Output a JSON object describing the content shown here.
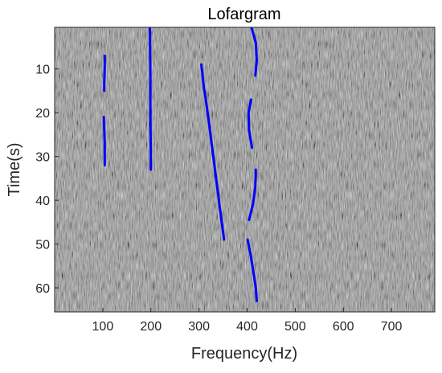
{
  "chart_data": {
    "type": "line",
    "title": "Lofargram",
    "xlabel": "Frequency(Hz)",
    "ylabel": "Time(s)",
    "xlim": [
      0,
      790
    ],
    "ylim": [
      0.5,
      65.5
    ],
    "y_reversed": true,
    "x_ticks": [
      100,
      200,
      300,
      400,
      500,
      600,
      700
    ],
    "y_ticks": [
      10,
      20,
      30,
      40,
      50,
      60
    ],
    "background": "grayscale noise spectrogram",
    "line_color": "#0000ff",
    "series": [
      {
        "points": [
          [
            104,
            7
          ],
          [
            104,
            10
          ],
          [
            103,
            13
          ],
          [
            103,
            15
          ]
        ]
      },
      {
        "points": [
          [
            102,
            21
          ],
          [
            103,
            24
          ],
          [
            104,
            27
          ],
          [
            104,
            30
          ],
          [
            104,
            32
          ]
        ]
      },
      {
        "points": [
          [
            198,
            0.5
          ],
          [
            199,
            10
          ],
          [
            199,
            20
          ],
          [
            200,
            30
          ],
          [
            200,
            33
          ]
        ]
      },
      {
        "points": [
          [
            305,
            9
          ],
          [
            310,
            14
          ],
          [
            318,
            20
          ],
          [
            325,
            26
          ],
          [
            332,
            32
          ],
          [
            339,
            38
          ],
          [
            346,
            44
          ],
          [
            352,
            49
          ]
        ]
      },
      {
        "points": [
          [
            409,
            0.5
          ],
          [
            418,
            4
          ],
          [
            420,
            8
          ],
          [
            417,
            11.5
          ]
        ]
      },
      {
        "points": [
          [
            408,
            17
          ],
          [
            403,
            20
          ],
          [
            404,
            24
          ],
          [
            410,
            28
          ]
        ]
      },
      {
        "points": [
          [
            418,
            33
          ],
          [
            417,
            37
          ],
          [
            412,
            41
          ],
          [
            404,
            44.5
          ]
        ]
      },
      {
        "points": [
          [
            401,
            49
          ],
          [
            408,
            53
          ],
          [
            414,
            57
          ],
          [
            418,
            60
          ],
          [
            420,
            63
          ]
        ]
      }
    ]
  }
}
